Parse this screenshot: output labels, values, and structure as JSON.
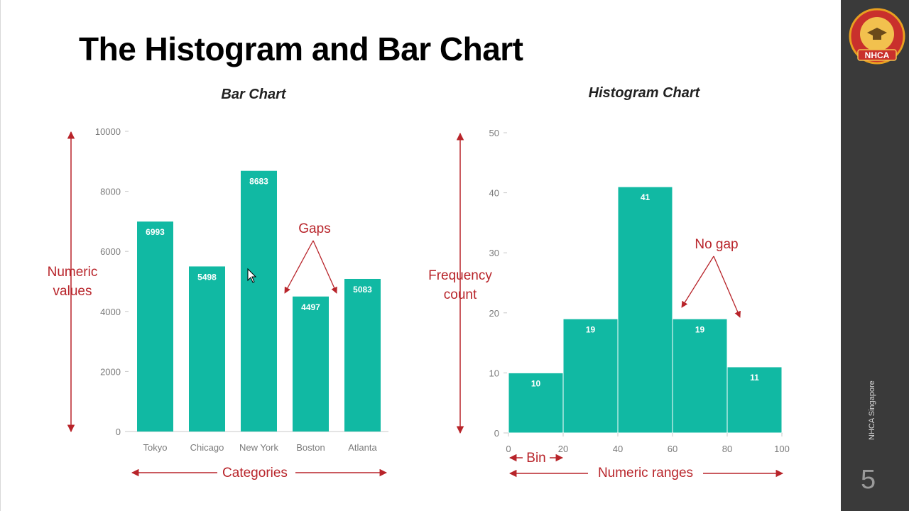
{
  "slide": {
    "title": "The Histogram and Bar Chart",
    "page_number": "5",
    "brand": "NHCA Singapore",
    "logo_text": "NHCA",
    "colors": {
      "bar": "#11b9a3",
      "annotation": "#b8242a",
      "sidebar": "#3a3a3a"
    }
  },
  "chart_data": [
    {
      "type": "bar",
      "title": "Bar Chart",
      "categories": [
        "Tokyo",
        "Chicago",
        "New York",
        "Boston",
        "Atlanta"
      ],
      "values": [
        6993,
        5498,
        8683,
        4497,
        5083
      ],
      "yticks": [
        "0",
        "2000",
        "4000",
        "6000",
        "8000",
        "10000"
      ],
      "ylim": [
        0,
        10000
      ],
      "data_labels": [
        "6993",
        "5498",
        "8683",
        "4497",
        "5083"
      ],
      "annotations": {
        "y_axis": [
          "Numeric",
          "values"
        ],
        "x_axis": "Categories",
        "gaps": "Gaps"
      }
    },
    {
      "type": "bar",
      "title": "Histogram Chart",
      "bins": [
        [
          0,
          20
        ],
        [
          20,
          40
        ],
        [
          40,
          60
        ],
        [
          60,
          80
        ],
        [
          80,
          100
        ]
      ],
      "values": [
        10,
        19,
        41,
        19,
        11
      ],
      "xticks": [
        "0",
        "20",
        "40",
        "60",
        "80",
        "100"
      ],
      "yticks": [
        "0",
        "10",
        "20",
        "30",
        "40",
        "50"
      ],
      "xlim": [
        0,
        100
      ],
      "ylim": [
        0,
        50
      ],
      "data_labels": [
        "10",
        "19",
        "41",
        "19",
        "11"
      ],
      "annotations": {
        "y_axis": [
          "Frequency",
          "count"
        ],
        "x_axis": "Numeric ranges",
        "bin": "Bin",
        "no_gap": "No gap"
      }
    }
  ]
}
